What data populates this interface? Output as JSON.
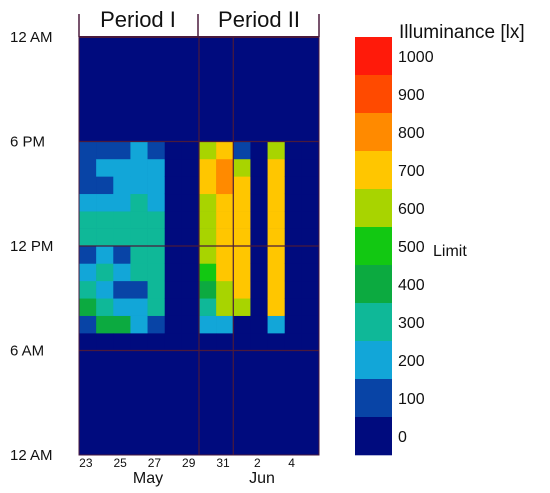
{
  "chart_data": {
    "type": "heatmap",
    "title": "",
    "periods": [
      "Period I",
      "Period II"
    ],
    "y_tick_labels": [
      "12 AM",
      "6 AM",
      "12 PM",
      "6 PM",
      "12 AM"
    ],
    "x_tick_labels": [
      "23",
      "25",
      "27",
      "29",
      "31",
      "2",
      "4"
    ],
    "month_labels": [
      "May",
      "Jun"
    ],
    "days": [
      "May 23",
      "May 24",
      "May 25",
      "May 26",
      "May 27",
      "May 28",
      "May 29",
      "May 30",
      "May 31",
      "Jun 1",
      "Jun 2",
      "Jun 3",
      "Jun 4",
      "Jun 5"
    ],
    "hours_bottom_to_top": [
      0,
      1,
      2,
      3,
      4,
      5,
      6,
      7,
      8,
      9,
      10,
      11,
      12,
      13,
      14,
      15,
      16,
      17,
      18,
      19,
      20,
      21,
      22,
      23
    ],
    "active_hours_bottom_to_top": [
      6,
      7,
      8,
      9,
      10,
      11,
      12,
      13,
      14,
      15,
      16,
      17
    ],
    "active_values_by_day": [
      [
        0,
        80,
        380,
        260,
        240,
        80,
        260,
        320,
        180,
        120,
        120,
        100
      ],
      [
        0,
        420,
        320,
        200,
        280,
        240,
        260,
        250,
        240,
        100,
        160,
        120
      ],
      [
        0,
        440,
        240,
        110,
        200,
        120,
        300,
        280,
        200,
        180,
        220,
        120
      ],
      [
        0,
        150,
        220,
        140,
        250,
        250,
        300,
        280,
        270,
        190,
        200,
        200
      ],
      [
        0,
        100,
        340,
        280,
        300,
        260,
        280,
        300,
        180,
        200,
        170,
        140
      ],
      [
        0,
        0,
        0,
        0,
        0,
        0,
        0,
        0,
        0,
        0,
        0,
        0
      ],
      [
        0,
        0,
        0,
        0,
        0,
        0,
        0,
        0,
        0,
        0,
        0,
        0
      ],
      [
        0,
        220,
        320,
        420,
        450,
        560,
        620,
        620,
        560,
        720,
        720,
        620
      ],
      [
        0,
        240,
        560,
        640,
        660,
        700,
        700,
        720,
        680,
        780,
        760,
        680
      ],
      [
        0,
        0,
        600,
        700,
        700,
        700,
        700,
        690,
        720,
        720,
        640,
        140
      ],
      [
        0,
        0,
        0,
        0,
        0,
        0,
        0,
        0,
        0,
        0,
        0,
        0
      ],
      [
        0,
        200,
        740,
        700,
        700,
        680,
        700,
        700,
        680,
        700,
        720,
        560
      ],
      [
        0,
        0,
        0,
        0,
        0,
        0,
        0,
        0,
        0,
        0,
        0,
        0
      ],
      [
        0,
        0,
        0,
        0,
        0,
        0,
        0,
        0,
        0,
        0,
        0,
        0
      ]
    ],
    "colorbar": {
      "title": "Illuminance  [lx]",
      "tick_labels": [
        "1000",
        "900",
        "800",
        "700",
        "600",
        "500",
        "400",
        "300",
        "200",
        "100",
        "0"
      ],
      "limit_label": "Limit",
      "limit_value": 500,
      "range": [
        0,
        1050
      ],
      "bands_top_to_bottom": [
        "#ff1a0a",
        "#ff4a00",
        "#ff8a00",
        "#ffc600",
        "#a8d400",
        "#12c812",
        "#0caa40",
        "#0fb898",
        "#12a6d8",
        "#0844a6",
        "#000b7e"
      ]
    }
  }
}
